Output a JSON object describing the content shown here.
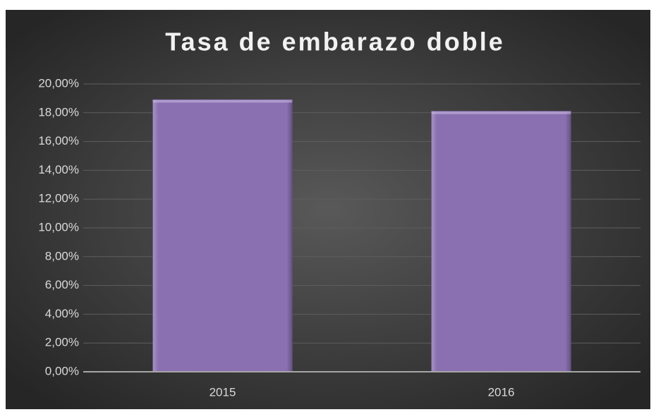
{
  "chart_data": {
    "type": "bar",
    "title": "Tasa de embarazo doble",
    "categories": [
      "2015",
      "2016"
    ],
    "values": [
      18.9,
      18.1
    ],
    "color": "#8a70b0",
    "ylim": [
      0,
      20
    ],
    "yticks": [
      {
        "value": 0,
        "label": "0,00%"
      },
      {
        "value": 2,
        "label": "2,00%"
      },
      {
        "value": 4,
        "label": "4,00%"
      },
      {
        "value": 6,
        "label": "6,00%"
      },
      {
        "value": 8,
        "label": "8,00%"
      },
      {
        "value": 10,
        "label": "10,00%"
      },
      {
        "value": 12,
        "label": "12,00%"
      },
      {
        "value": 14,
        "label": "14,00%"
      },
      {
        "value": 16,
        "label": "16,00%"
      },
      {
        "value": 18,
        "label": "18,00%"
      },
      {
        "value": 20,
        "label": "20,00%"
      }
    ],
    "grid": true
  }
}
